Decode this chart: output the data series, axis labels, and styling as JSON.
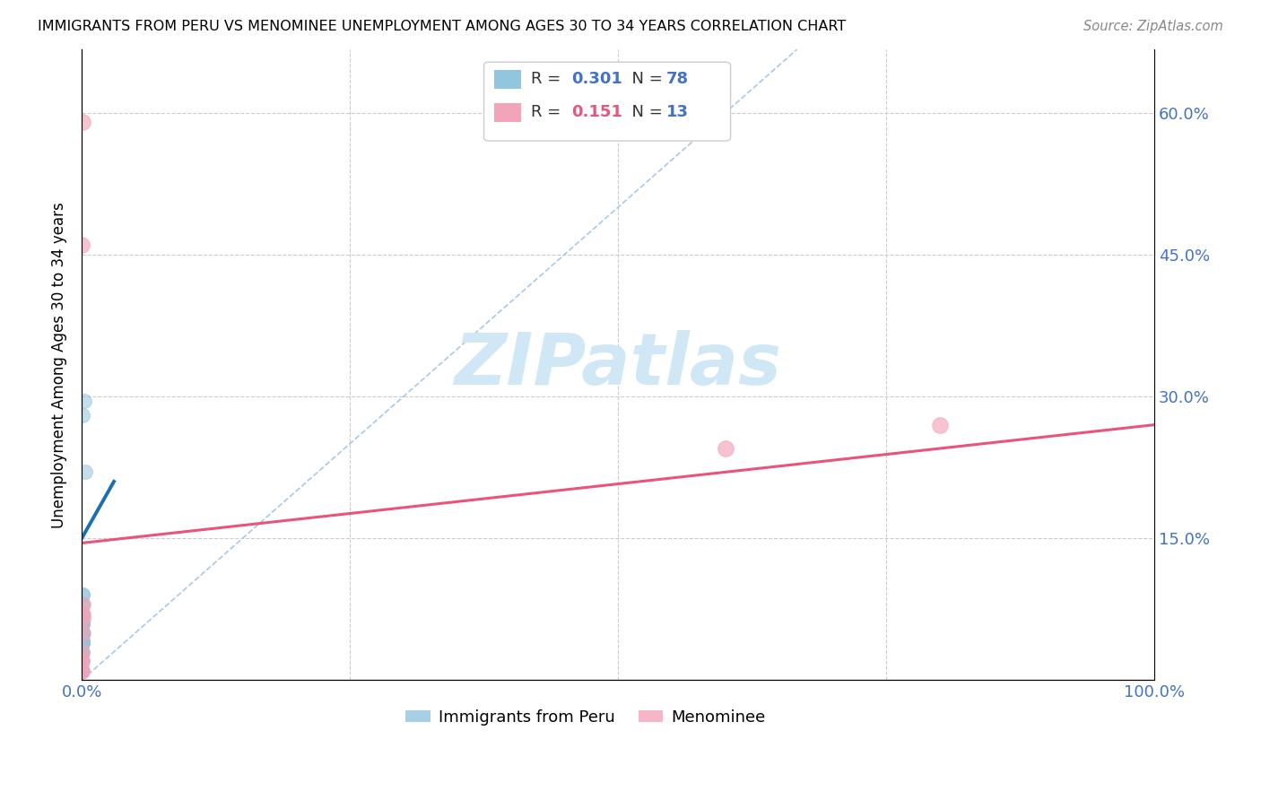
{
  "title": "IMMIGRANTS FROM PERU VS MENOMINEE UNEMPLOYMENT AMONG AGES 30 TO 34 YEARS CORRELATION CHART",
  "source": "Source: ZipAtlas.com",
  "ylabel": "Unemployment Among Ages 30 to 34 years",
  "xlim": [
    0,
    1.0
  ],
  "ylim": [
    0,
    0.667
  ],
  "ytick_vals": [
    0.0,
    0.15,
    0.3,
    0.45,
    0.6
  ],
  "ytick_labels": [
    "",
    "15.0%",
    "30.0%",
    "45.0%",
    "60.0%"
  ],
  "xtick_vals": [
    0.0,
    0.25,
    0.5,
    0.75,
    1.0
  ],
  "xtick_labels": [
    "0.0%",
    "",
    "",
    "",
    "100.0%"
  ],
  "blue_R": "0.301",
  "blue_N": "78",
  "pink_R": "0.151",
  "pink_N": "13",
  "blue_color": "#92c5de",
  "pink_color": "#f4a4b8",
  "blue_line_color": "#1a6faf",
  "pink_line_color": "#e8547a",
  "diagonal_color": "#a8c8e8",
  "watermark_color": "#d0e8f5",
  "blue_scatter_x": [
    0.0002,
    0.0003,
    0.0005,
    0.0001,
    0.0004,
    0.0002,
    0.0001,
    0.0006,
    0.0003,
    0.0002,
    0.0001,
    0.0007,
    0.0004,
    0.0002,
    0.0001,
    0.0003,
    0.0008,
    0.0002,
    0.0001,
    0.0003,
    0.0005,
    0.0004,
    0.0002,
    0.0001,
    0.0006,
    0.0003,
    0.0002,
    0.0001,
    0.0004,
    0.0003,
    0.0002,
    0.0001,
    0.0009,
    0.0005,
    0.0003,
    0.0002,
    0.0001,
    0.0004,
    0.0003,
    0.0002,
    0.0001,
    0.0005,
    0.0003,
    0.0002,
    0.0001,
    0.0006,
    0.0004,
    0.0002,
    0.0001,
    0.0003,
    0.0007,
    0.0002,
    0.0001,
    0.0003,
    0.0005,
    0.0004,
    0.0002,
    0.0001,
    0.0006,
    0.0003,
    0.0002,
    0.0001,
    0.0004,
    0.0003,
    0.0002,
    0.0001,
    0.0009,
    0.0005,
    0.0003,
    0.0002,
    0.0001,
    0.0004,
    0.0003,
    0.0002,
    0.0001,
    0.0003,
    0.002,
    0.003
  ],
  "blue_scatter_y": [
    0.02,
    0.03,
    0.05,
    0.01,
    0.04,
    0.03,
    0.02,
    0.06,
    0.04,
    0.02,
    0.01,
    0.07,
    0.05,
    0.03,
    0.01,
    0.04,
    0.08,
    0.03,
    0.01,
    0.04,
    0.06,
    0.05,
    0.03,
    0.01,
    0.07,
    0.04,
    0.03,
    0.01,
    0.05,
    0.04,
    0.03,
    0.01,
    0.09,
    0.06,
    0.04,
    0.03,
    0.01,
    0.05,
    0.04,
    0.03,
    0.01,
    0.06,
    0.04,
    0.03,
    0.01,
    0.07,
    0.05,
    0.03,
    0.01,
    0.04,
    0.08,
    0.03,
    0.01,
    0.04,
    0.06,
    0.05,
    0.03,
    0.01,
    0.07,
    0.04,
    0.03,
    0.01,
    0.05,
    0.04,
    0.03,
    0.01,
    0.09,
    0.06,
    0.04,
    0.03,
    0.01,
    0.05,
    0.04,
    0.03,
    0.01,
    0.28,
    0.295,
    0.22
  ],
  "pink_scatter_x": [
    0.0002,
    0.0003,
    0.0001,
    0.0004,
    0.0001,
    0.0002,
    0.0001,
    0.0004,
    0.6,
    0.8,
    0.0005,
    0.0001,
    0.0003
  ],
  "pink_scatter_y": [
    0.03,
    0.05,
    0.46,
    0.07,
    0.01,
    0.02,
    0.02,
    0.08,
    0.245,
    0.27,
    0.065,
    0.01,
    0.59
  ],
  "blue_trend_x0": 0.0,
  "blue_trend_y0": 0.15,
  "blue_trend_x1": 0.03,
  "blue_trend_y1": 0.21,
  "pink_trend_x0": 0.0,
  "pink_trend_y0": 0.145,
  "pink_trend_x1": 1.0,
  "pink_trend_y1": 0.27
}
